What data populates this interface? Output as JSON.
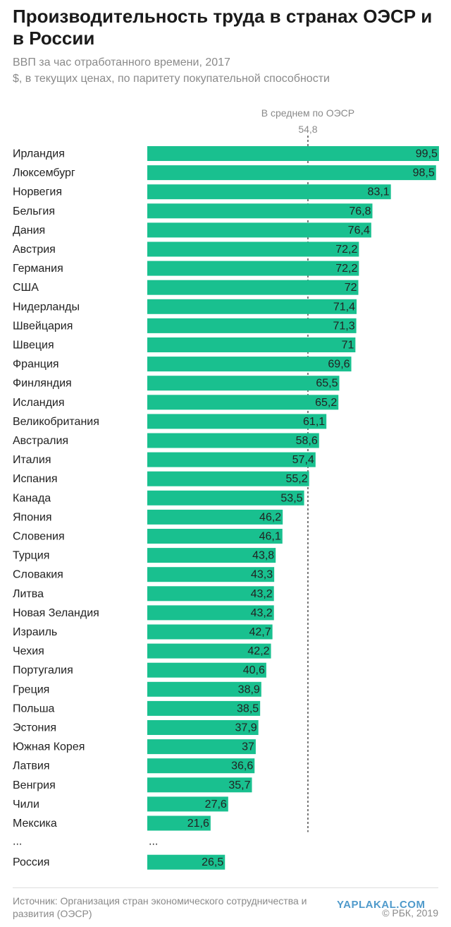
{
  "header": {
    "title": "Производительность труда в странах ОЭСР и в России",
    "subtitle_1": "ВВП за час отработанного времени, 2017",
    "subtitle_2": "$, в текущих ценах, по паритету покупательной способности"
  },
  "chart_data": {
    "type": "bar",
    "orientation": "horizontal",
    "categories": [
      "Ирландия",
      "Люксембург",
      "Норвегия",
      "Бельгия",
      "Дания",
      "Австрия",
      "Германия",
      "США",
      "Нидерланды",
      "Швейцария",
      "Швеция",
      "Франция",
      "Финляндия",
      "Исландия",
      "Великобритания",
      "Австралия",
      "Италия",
      "Испания",
      "Канада",
      "Япония",
      "Словения",
      "Турция",
      "Словакия",
      "Литва",
      "Новая Зеландия",
      "Израиль",
      "Чехия",
      "Португалия",
      "Греция",
      "Польша",
      "Эстония",
      "Южная Корея",
      "Латвия",
      "Венгрия",
      "Чили",
      "Мексика"
    ],
    "values": [
      99.5,
      98.5,
      83.1,
      76.8,
      76.4,
      72.2,
      72.2,
      72,
      71.4,
      71.3,
      71,
      69.6,
      65.5,
      65.2,
      61.1,
      58.6,
      57.4,
      55.2,
      53.5,
      46.2,
      46.1,
      43.8,
      43.3,
      43.2,
      43.2,
      42.7,
      42.2,
      40.6,
      38.9,
      38.5,
      37.9,
      37,
      36.6,
      35.7,
      27.6,
      21.6
    ],
    "labels": [
      "99,5",
      "98,5",
      "83,1",
      "76,8",
      "76,4",
      "72,2",
      "72,2",
      "72",
      "71,4",
      "71,3",
      "71",
      "69,6",
      "65,5",
      "65,2",
      "61,1",
      "58,6",
      "57,4",
      "55,2",
      "53,5",
      "46,2",
      "46,1",
      "43,8",
      "43,3",
      "43,2",
      "43,2",
      "42,7",
      "42,2",
      "40,6",
      "38,9",
      "38,5",
      "37,9",
      "37",
      "36,6",
      "35,7",
      "27,6",
      "21,6"
    ],
    "ellipsis_label": "...",
    "extra": {
      "category": "Россия",
      "value": 26.5,
      "label": "26,5"
    },
    "reference_line": {
      "label": "В среднем по ОЭСР",
      "value": 54.8,
      "value_label": "54,8"
    },
    "bar_color": "#19c08f",
    "xlim": [
      0,
      100
    ],
    "grid": false
  },
  "footer": {
    "source": "Источник: Организация стран экономического сотрудничества и развития (ОЭСР)",
    "copyright": "© РБК, 2019",
    "watermark": "YAPLAKAL.COM"
  }
}
